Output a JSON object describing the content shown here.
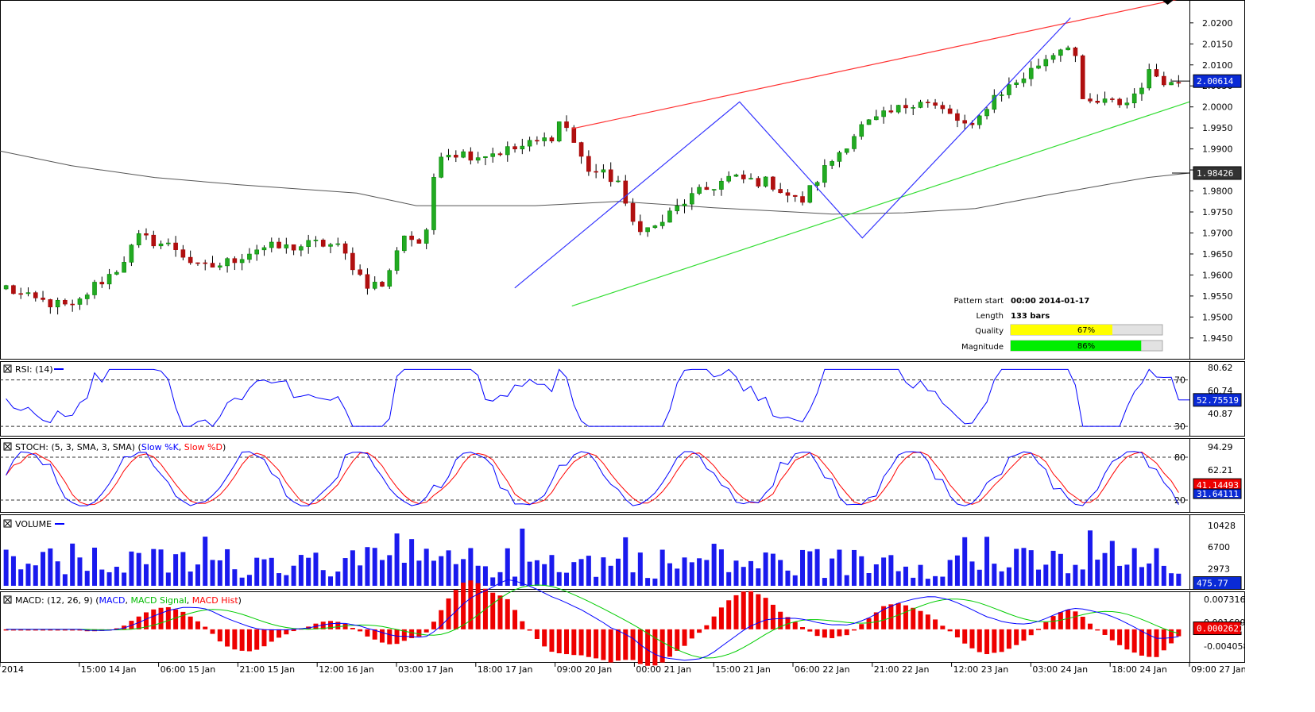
{
  "chart_data": {
    "type": "candlestick",
    "main": {
      "ylim": [
        1.941,
        2.0245
      ],
      "yticks": [
        "2.0200",
        "2.0150",
        "2.0100",
        "2.0050",
        "2.0000",
        "1.9950",
        "1.9900",
        "1.9850",
        "1.9800",
        "1.9750",
        "1.9700",
        "1.9650",
        "1.9600",
        "1.9550",
        "1.9500",
        "1.9450"
      ],
      "last_price": 2.00614,
      "last_price_label": "2.00614",
      "ma_value": 1.98426,
      "ma_label": "1.98426",
      "wedge_upper": [
        [
          0.4808,
          1.9948
        ],
        [
          1.0,
          2.0262
        ]
      ],
      "wedge_lower": [
        [
          0.4808,
          1.9526
        ],
        [
          1.0,
          2.0012
        ]
      ],
      "zigzag": [
        [
          0.4808,
          1.9569
        ],
        [
          0.6909,
          2.0012
        ],
        [
          0.8055,
          1.9688
        ],
        [
          1.0,
          2.0212
        ]
      ]
    },
    "x_labels": [
      "2014",
      "15:00 14 Jan",
      "06:00 15 Jan",
      "21:00 15 Jan",
      "12:00 16 Jan",
      "03:00 17 Jan",
      "18:00 17 Jan",
      "09:00 20 Jan",
      "00:00 21 Jan",
      "15:00 21 Jan",
      "06:00 22 Jan",
      "21:00 22 Jan",
      "12:00 23 Jan",
      "03:00 24 Jan",
      "18:00 24 Jan",
      "09:00 27 Jan 2014"
    ],
    "pattern": {
      "start_label": "Pattern start",
      "start_value": "00:00 2014-01-17",
      "length_label": "Length",
      "length_value": "133 bars",
      "quality_label": "Quality",
      "quality_value": "67%",
      "quality": 0.67,
      "magnitude_label": "Magnitude",
      "magnitude_value": "86%",
      "magnitude": 0.86
    },
    "rsi": {
      "title": "RSI: (14)",
      "ylim": [
        26,
        82
      ],
      "levels": [
        "70",
        "30"
      ],
      "ticks": [
        "80.62",
        "60.74",
        "40.87"
      ],
      "last_label": "52.75519",
      "last": 52.75519
    },
    "stoch": {
      "title": "STOCH: (5, 3, SMA, 3, SMA)",
      "series": [
        {
          "name": "Slow %K",
          "color": "#0000ff"
        },
        {
          "name": "Slow %D",
          "color": "#ff0000"
        }
      ],
      "ylim": [
        10,
        100
      ],
      "levels": [
        "80",
        "20"
      ],
      "ticks": [
        "94.29",
        "62.21"
      ],
      "k_last_label": "31.64111",
      "d_last_label": "41.14493"
    },
    "volume": {
      "title": "VOLUME",
      "ylim": [
        0,
        11500
      ],
      "ticks": [
        "10428",
        "6700",
        "2973"
      ],
      "last_label": "475.77"
    },
    "macd": {
      "title": "MACD: (12, 26, 9)",
      "series": [
        {
          "name": "MACD",
          "color": "#0000ff"
        },
        {
          "name": "MACD Signal",
          "color": "#00cc00"
        },
        {
          "name": "MACD Hist",
          "color": "#ff0000"
        }
      ],
      "ylim": [
        -0.0072,
        0.0085
      ],
      "ticks": [
        "0.007316",
        "0.001699",
        "-0.004058"
      ],
      "last_label": "0.0002621"
    }
  }
}
